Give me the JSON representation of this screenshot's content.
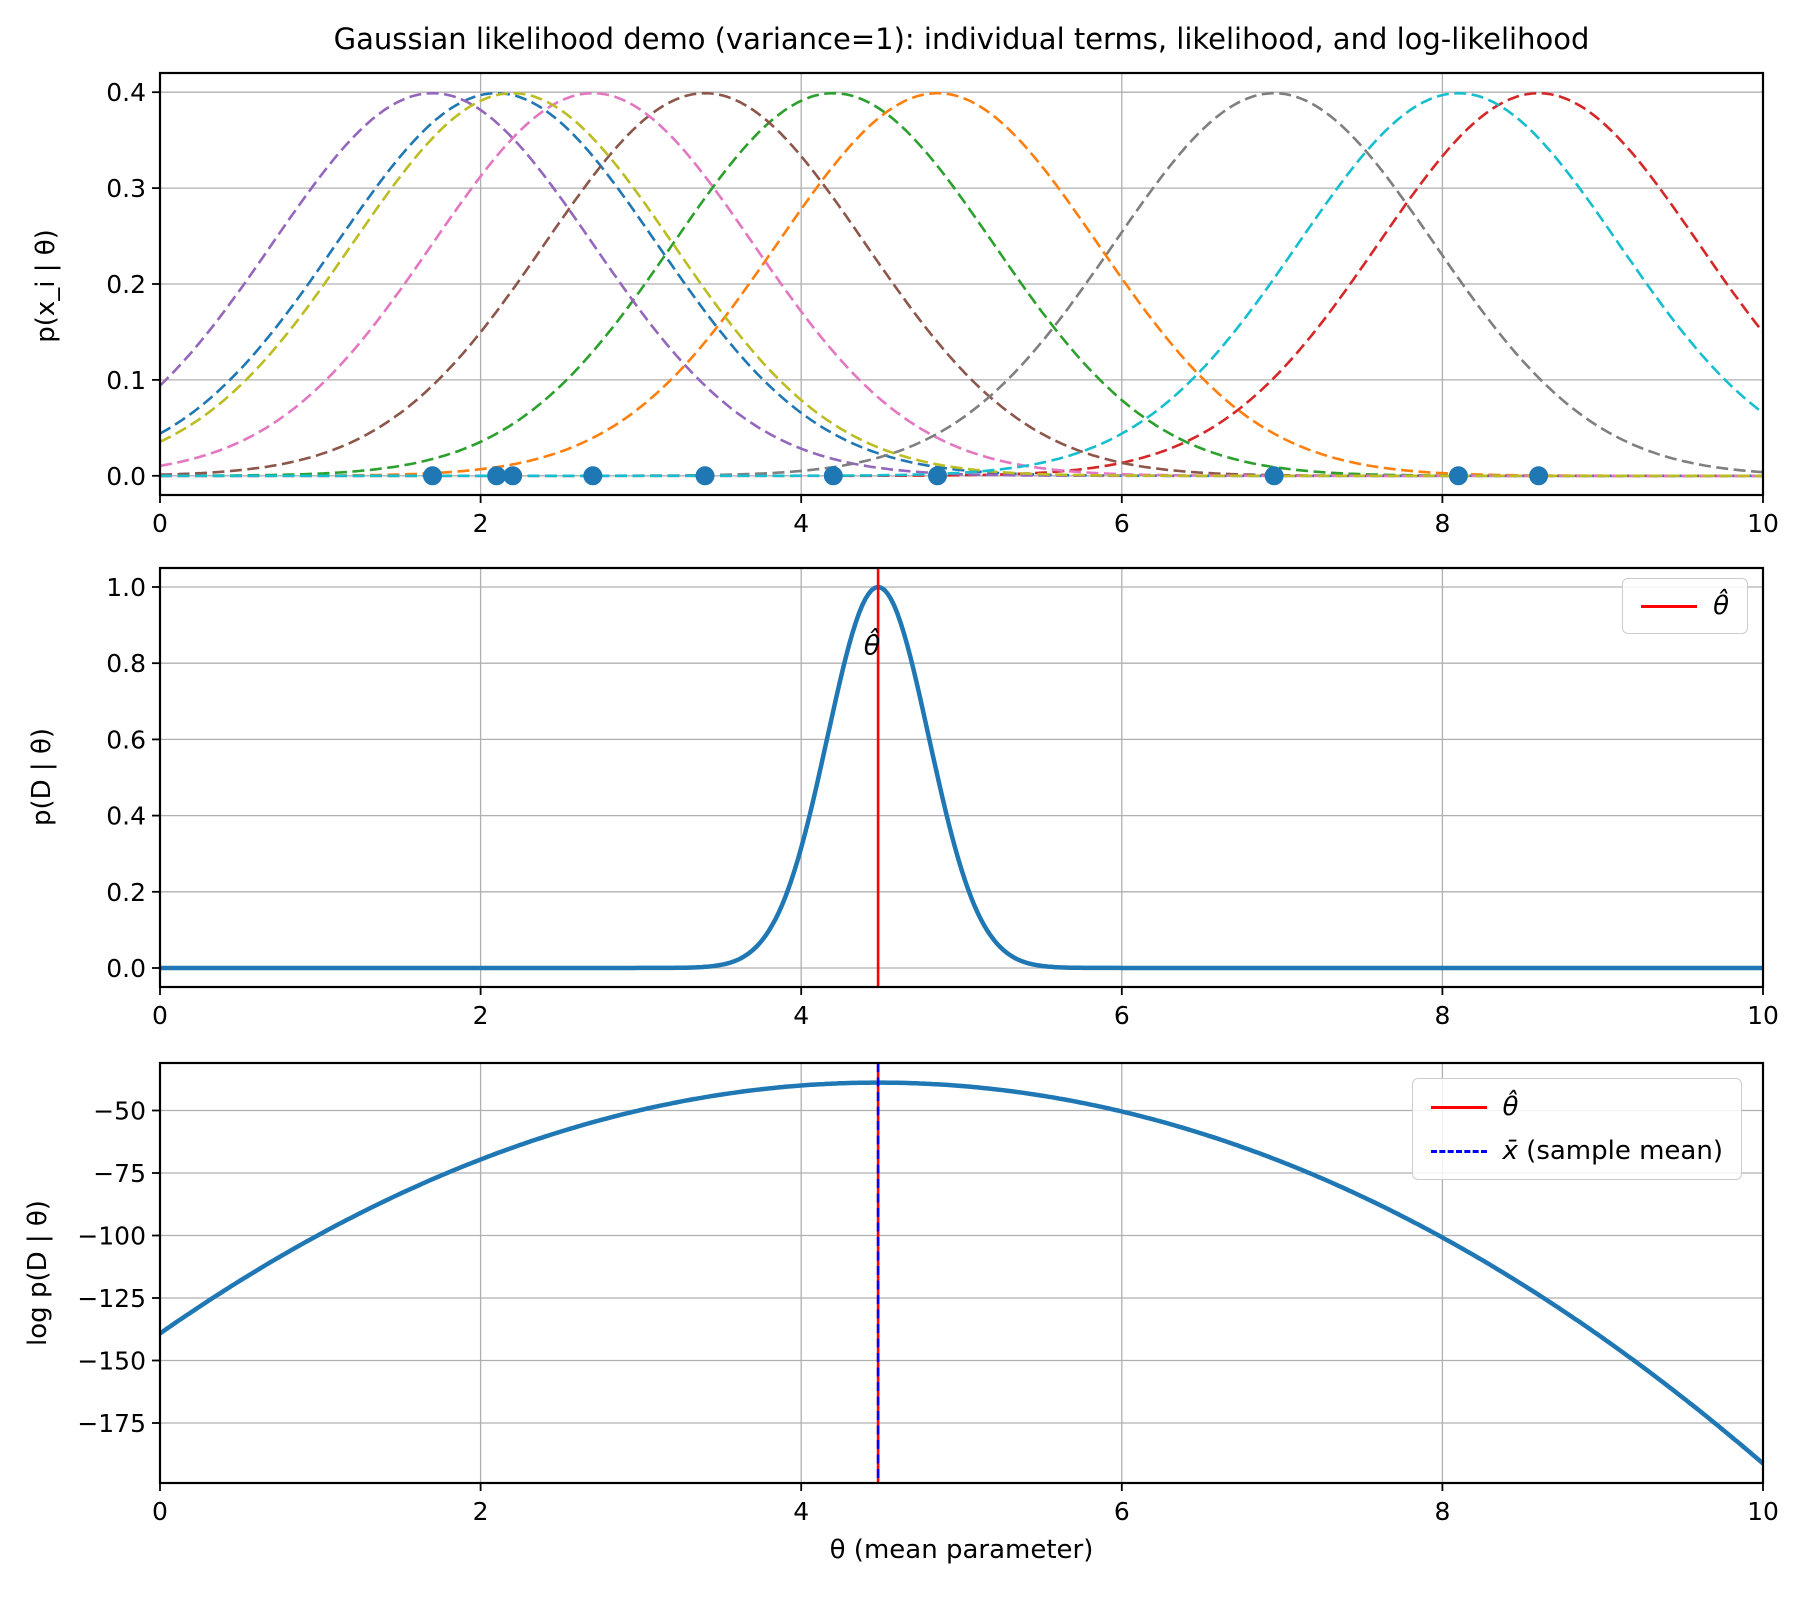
{
  "figure": {
    "title": "Gaussian likelihood demo (variance=1): individual terms, likelihood, and log-likelihood",
    "background": "#ffffff"
  },
  "colors": {
    "color_cycle": [
      "#1f77b4",
      "#ff7f0e",
      "#2ca02c",
      "#d62728",
      "#9467bd",
      "#8c564b",
      "#e377c2",
      "#7f7f7f",
      "#bcbd22",
      "#17becf"
    ],
    "data_point_color": "#1f77b4",
    "main_curve_color": "#1f77b4",
    "theta_hat_line_color": "#ff0000",
    "sample_mean_line_color": "#0000ff",
    "grid_color": "#b0b0b0",
    "spine_color": "#000000"
  },
  "stats": {
    "n_samples": 10,
    "variance": 1,
    "sample_mean": 4.48,
    "theta_hat": 4.48,
    "log_likelihood_max": -38.85
  },
  "chart_data": [
    {
      "type": "line",
      "subplot": "individual-likelihood-terms",
      "ylabel": "p(x_i | θ)",
      "xlim": [
        0,
        10
      ],
      "ylim": [
        -0.02,
        0.42
      ],
      "xtick_values": [
        0,
        2,
        4,
        6,
        8,
        10
      ],
      "xtick_labels": [
        "0",
        "2",
        "4",
        "6",
        "8",
        "10"
      ],
      "ytick_values": [
        0.0,
        0.1,
        0.2,
        0.3,
        0.4
      ],
      "ytick_labels": [
        "0.0",
        "0.1",
        "0.2",
        "0.3",
        "0.4"
      ],
      "grid": true,
      "sigma": 1,
      "peak_density": 0.3989,
      "line_style": "dashed",
      "series": [
        {
          "name": "term x=2.1",
          "mean": 2.1,
          "color": "#1f77b4"
        },
        {
          "name": "term x=4.85",
          "mean": 4.85,
          "color": "#ff7f0e"
        },
        {
          "name": "term x=4.2",
          "mean": 4.2,
          "color": "#2ca02c"
        },
        {
          "name": "term x=8.6",
          "mean": 8.6,
          "color": "#d62728"
        },
        {
          "name": "term x=1.7",
          "mean": 1.7,
          "color": "#9467bd"
        },
        {
          "name": "term x=3.4",
          "mean": 3.4,
          "color": "#8c564b"
        },
        {
          "name": "term x=2.7",
          "mean": 2.7,
          "color": "#e377c2"
        },
        {
          "name": "term x=6.95",
          "mean": 6.95,
          "color": "#7f7f7f"
        },
        {
          "name": "term x=2.2",
          "mean": 2.2,
          "color": "#bcbd22"
        },
        {
          "name": "term x=8.1",
          "mean": 8.1,
          "color": "#17becf"
        }
      ],
      "data_points": {
        "x": [
          2.1,
          4.85,
          4.2,
          8.6,
          1.7,
          3.4,
          2.7,
          6.95,
          2.2,
          8.1
        ],
        "y": 0,
        "color": "#1f77b4"
      }
    },
    {
      "type": "line",
      "subplot": "likelihood",
      "ylabel": "p(D | θ)",
      "xlim": [
        0,
        10
      ],
      "ylim": [
        -0.05,
        1.05
      ],
      "xtick_values": [
        0,
        2,
        4,
        6,
        8,
        10
      ],
      "xtick_labels": [
        "0",
        "2",
        "4",
        "6",
        "8",
        "10"
      ],
      "ytick_values": [
        0.0,
        0.2,
        0.4,
        0.6,
        0.8,
        1.0
      ],
      "ytick_labels": [
        "0.0",
        "0.2",
        "0.4",
        "0.6",
        "0.8",
        "1.0"
      ],
      "grid": true,
      "curve": {
        "center": 4.48,
        "sigma": 0.316,
        "peak": 1.0,
        "color": "#1f77b4"
      },
      "vlines": [
        {
          "x": 4.48,
          "color": "#ff0000",
          "style": "solid"
        }
      ],
      "annotation": {
        "text": "θ̂",
        "x": 4.48,
        "y": 0.82
      },
      "legend": [
        {
          "symbol": "θ̂",
          "suffix": "",
          "color": "#ff0000",
          "style": "solid"
        }
      ]
    },
    {
      "type": "line",
      "subplot": "log-likelihood",
      "ylabel": "log p(D | θ)",
      "xlabel": "θ (mean parameter)",
      "xlim": [
        0,
        10
      ],
      "ylim": [
        -199,
        -31
      ],
      "xtick_values": [
        0,
        2,
        4,
        6,
        8,
        10
      ],
      "xtick_labels": [
        "0",
        "2",
        "4",
        "6",
        "8",
        "10"
      ],
      "ytick_values": [
        -175,
        -150,
        -125,
        -100,
        -75,
        -50
      ],
      "ytick_labels": [
        "−175",
        "−150",
        "−125",
        "−100",
        "−75",
        "−50"
      ],
      "grid": true,
      "curve": {
        "max": -38.85,
        "center": 4.48,
        "quad_coefficient": -5,
        "color": "#1f77b4"
      },
      "vlines": [
        {
          "x": 4.48,
          "color": "#ff0000",
          "style": "solid"
        },
        {
          "x": 4.48,
          "color": "#0000ff",
          "style": "dashed"
        }
      ],
      "legend": [
        {
          "symbol": "θ̂",
          "suffix": "",
          "color": "#ff0000",
          "style": "solid"
        },
        {
          "symbol": "x̄",
          "suffix": " (sample mean)",
          "color": "#0000ff",
          "style": "dashed"
        }
      ]
    }
  ]
}
